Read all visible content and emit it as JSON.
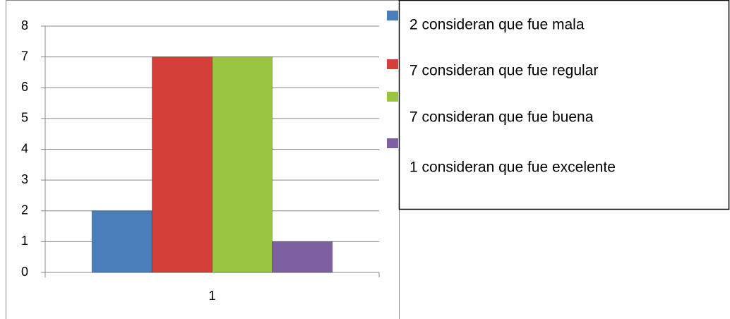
{
  "chart_data": {
    "type": "bar",
    "categories": [
      "1"
    ],
    "series": [
      {
        "name": "2 consideran que fue mala",
        "color": "#4a7ebb",
        "values": [
          2
        ]
      },
      {
        "name": "7 consideran que fue regular",
        "color": "#d43f3c",
        "values": [
          7
        ]
      },
      {
        "name": "7 consideran que fue buena",
        "color": "#98c440",
        "values": [
          7
        ]
      },
      {
        "name": "1 consideran que fue excelente",
        "color": "#7d60a0",
        "values": [
          1
        ]
      }
    ],
    "ylim": [
      0,
      8
    ],
    "yticks": [
      0,
      1,
      2,
      3,
      4,
      5,
      6,
      7,
      8
    ],
    "grid": true
  }
}
